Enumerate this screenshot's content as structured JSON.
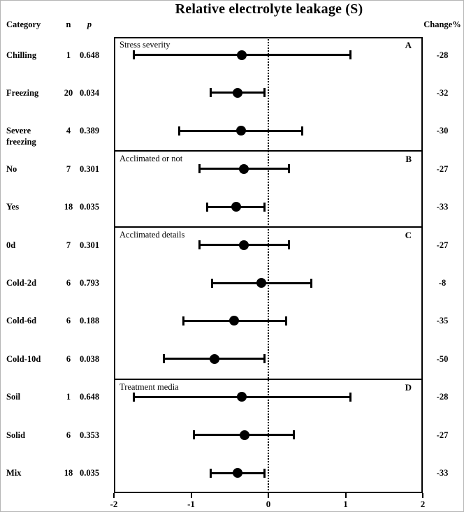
{
  "chart_data": {
    "type": "forest",
    "title": "Relative electrolyte leakage (S)",
    "xlabel": "",
    "xlim": [
      -2,
      2
    ],
    "x_ticks": [
      -2,
      -1,
      0,
      1,
      2
    ],
    "reference_line": 0,
    "grid": false,
    "columns": {
      "category": "Category",
      "n": "n",
      "p": "p",
      "change": "Change%"
    },
    "panels": [
      {
        "letter": "A",
        "label": "Stress severity",
        "rows": [
          {
            "category": "Chilling",
            "n": "1",
            "p": "0.648",
            "estimate": -0.34,
            "ci_low": -1.74,
            "ci_high": 1.06,
            "change_pct": "-28"
          },
          {
            "category": "Freezing",
            "n": "20",
            "p": "0.034",
            "estimate": -0.4,
            "ci_low": -0.75,
            "ci_high": -0.05,
            "change_pct": "-32"
          },
          {
            "category": "Severe freezing",
            "n": "4",
            "p": "0.389",
            "estimate": -0.35,
            "ci_low": -1.15,
            "ci_high": 0.44,
            "change_pct": "-30"
          }
        ]
      },
      {
        "letter": "B",
        "label": "Acclimated or not",
        "rows": [
          {
            "category": "No",
            "n": "7",
            "p": "0.301",
            "estimate": -0.32,
            "ci_low": -0.89,
            "ci_high": 0.27,
            "change_pct": "-27"
          },
          {
            "category": "Yes",
            "n": "18",
            "p": "0.035",
            "estimate": -0.42,
            "ci_low": -0.79,
            "ci_high": -0.05,
            "change_pct": "-33"
          }
        ]
      },
      {
        "letter": "C",
        "label": "Acclimated details",
        "rows": [
          {
            "category": "0d",
            "n": "7",
            "p": "0.301",
            "estimate": -0.32,
            "ci_low": -0.89,
            "ci_high": 0.27,
            "change_pct": "-27"
          },
          {
            "category": "Cold-2d",
            "n": "6",
            "p": "0.793",
            "estimate": -0.09,
            "ci_low": -0.73,
            "ci_high": 0.56,
            "change_pct": "-8"
          },
          {
            "category": "Cold-6d",
            "n": "6",
            "p": "0.188",
            "estimate": -0.44,
            "ci_low": -1.1,
            "ci_high": 0.23,
            "change_pct": "-35"
          },
          {
            "category": "Cold-10d",
            "n": "6",
            "p": "0.038",
            "estimate": -0.7,
            "ci_low": -1.35,
            "ci_high": -0.05,
            "change_pct": "-50"
          }
        ]
      },
      {
        "letter": "D",
        "label": "Treatment media",
        "rows": [
          {
            "category": "Soil",
            "n": "1",
            "p": "0.648",
            "estimate": -0.34,
            "ci_low": -1.74,
            "ci_high": 1.06,
            "change_pct": "-28"
          },
          {
            "category": "Solid",
            "n": "6",
            "p": "0.353",
            "estimate": -0.31,
            "ci_low": -0.96,
            "ci_high": 0.33,
            "change_pct": "-27"
          },
          {
            "category": "Mix",
            "n": "18",
            "p": "0.035",
            "estimate": -0.4,
            "ci_low": -0.75,
            "ci_high": -0.05,
            "change_pct": "-33"
          }
        ]
      }
    ]
  }
}
